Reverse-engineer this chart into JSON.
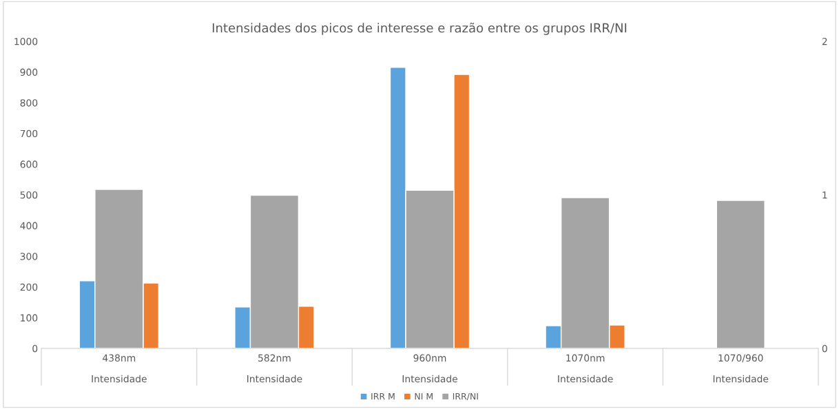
{
  "chart_data": {
    "type": "bar",
    "title": "Intensidades dos picos de interesse e razão entre os grupos IRR/NI",
    "categories": [
      "438nm\nIntensidade",
      "582nm\nIntensidade",
      "960nm\nIntensidade",
      "1070nm\nIntensidade",
      "1070/960\nIntensidade"
    ],
    "series": [
      {
        "name": "IRR M",
        "color": "#5ba3dc",
        "values": [
          220,
          135,
          915,
          74,
          null
        ]
      },
      {
        "name": "NI M",
        "color": "#ed7d31",
        "values": [
          213,
          137,
          892,
          76,
          null
        ]
      },
      {
        "name": "IRR/NI",
        "color": "#a5a5a5",
        "axis": "y2",
        "values": [
          1.036,
          0.998,
          1.03,
          0.982,
          0.964
        ]
      }
    ],
    "ylim": [
      0,
      1000
    ],
    "yticks": [
      0,
      100,
      200,
      300,
      400,
      500,
      600,
      700,
      800,
      900,
      1000
    ],
    "y2lim": [
      0,
      2
    ],
    "y2ticks": [
      0,
      1,
      2
    ],
    "legend": "bottom"
  }
}
